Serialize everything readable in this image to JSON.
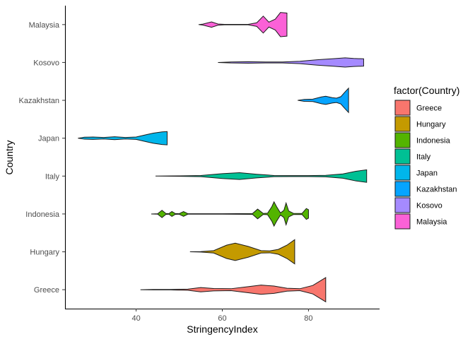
{
  "chart_data": {
    "type": "violin",
    "xlabel": "StringencyIndex",
    "ylabel": "Country",
    "xlim": [
      23.5,
      96.5
    ],
    "x_ticks": [
      40,
      60,
      80
    ],
    "grid": false,
    "legend": {
      "title": "factor(Country)",
      "placement": "right"
    },
    "categories": [
      "Greece",
      "Hungary",
      "Indonesia",
      "Italy",
      "Japan",
      "Kazakhstan",
      "Kosovo",
      "Malaysia"
    ],
    "series": [
      {
        "name": "Greece",
        "color": "#F8766D",
        "profile": [
          [
            41,
            0
          ],
          [
            44,
            0.02
          ],
          [
            48,
            0.02
          ],
          [
            52,
            0.05
          ],
          [
            55,
            0.18
          ],
          [
            58,
            0.1
          ],
          [
            62,
            0.08
          ],
          [
            66,
            0.25
          ],
          [
            69,
            0.38
          ],
          [
            72,
            0.3
          ],
          [
            75,
            0.12
          ],
          [
            78,
            0.08
          ],
          [
            81,
            0.35
          ],
          [
            84,
            1.0
          ]
        ]
      },
      {
        "name": "Hungary",
        "color": "#C49A00",
        "profile": [
          [
            52.5,
            0
          ],
          [
            55,
            0.02
          ],
          [
            58,
            0.1
          ],
          [
            61,
            0.55
          ],
          [
            63,
            0.72
          ],
          [
            66,
            0.45
          ],
          [
            69,
            0.1
          ],
          [
            71,
            0.08
          ],
          [
            73,
            0.2
          ],
          [
            75,
            0.55
          ],
          [
            76.8,
            1.0
          ]
        ]
      },
      {
        "name": "Indonesia",
        "color": "#53B400",
        "profile": [
          [
            43.5,
            0
          ],
          [
            45,
            0.02
          ],
          [
            46,
            0.3
          ],
          [
            46.9,
            0.04
          ],
          [
            47.6,
            0.02
          ],
          [
            48.3,
            0.2
          ],
          [
            49.1,
            0.03
          ],
          [
            50,
            0.02
          ],
          [
            51,
            0.2
          ],
          [
            52,
            0.02
          ],
          [
            60,
            0.02
          ],
          [
            67,
            0.03
          ],
          [
            68.2,
            0.4
          ],
          [
            69.5,
            0.04
          ],
          [
            70.5,
            0.06
          ],
          [
            71.5,
            0.6
          ],
          [
            72,
            1.0
          ],
          [
            72.6,
            0.6
          ],
          [
            73.5,
            0.08
          ],
          [
            74.3,
            0.3
          ],
          [
            74.8,
            0.9
          ],
          [
            75.4,
            0.25
          ],
          [
            76.5,
            0.05
          ],
          [
            78.5,
            0.04
          ],
          [
            79.5,
            0.45
          ],
          [
            80,
            0.35
          ]
        ]
      },
      {
        "name": "Italy",
        "color": "#00C094",
        "profile": [
          [
            44.5,
            0
          ],
          [
            50,
            0.02
          ],
          [
            55,
            0.05
          ],
          [
            60,
            0.2
          ],
          [
            64,
            0.28
          ],
          [
            68,
            0.15
          ],
          [
            72,
            0.05
          ],
          [
            76,
            0.04
          ],
          [
            80,
            0.04
          ],
          [
            84,
            0.06
          ],
          [
            88,
            0.18
          ],
          [
            91,
            0.4
          ],
          [
            93.5,
            0.52
          ]
        ]
      },
      {
        "name": "Japan",
        "color": "#00B6EB",
        "profile": [
          [
            26.5,
            0
          ],
          [
            28,
            0.08
          ],
          [
            30,
            0.1
          ],
          [
            32.5,
            0.06
          ],
          [
            35,
            0.12
          ],
          [
            37.5,
            0.06
          ],
          [
            40,
            0.1
          ],
          [
            42.5,
            0.3
          ],
          [
            44,
            0.42
          ],
          [
            46,
            0.52
          ],
          [
            47.2,
            0.55
          ]
        ]
      },
      {
        "name": "Kazakhstan",
        "color": "#06A4FF",
        "profile": [
          [
            77.5,
            0
          ],
          [
            79,
            0.08
          ],
          [
            81,
            0.1
          ],
          [
            83,
            0.28
          ],
          [
            84,
            0.34
          ],
          [
            85.5,
            0.22
          ],
          [
            86.5,
            0.18
          ],
          [
            87.5,
            0.3
          ],
          [
            88.5,
            0.7
          ],
          [
            89.3,
            1.0
          ]
        ]
      },
      {
        "name": "Kosovo",
        "color": "#A58AFF",
        "profile": [
          [
            59,
            0
          ],
          [
            62,
            0.04
          ],
          [
            66,
            0.06
          ],
          [
            70,
            0.04
          ],
          [
            74,
            0.04
          ],
          [
            78,
            0.1
          ],
          [
            82,
            0.22
          ],
          [
            86,
            0.32
          ],
          [
            88.5,
            0.38
          ],
          [
            90.5,
            0.33
          ],
          [
            92.8,
            0.3
          ]
        ]
      },
      {
        "name": "Malaysia",
        "color": "#FB61D7",
        "profile": [
          [
            54.5,
            0
          ],
          [
            55.5,
            0.04
          ],
          [
            57.5,
            0.22
          ],
          [
            59,
            0.05
          ],
          [
            60.5,
            0.02
          ],
          [
            66,
            0.02
          ],
          [
            68,
            0.15
          ],
          [
            69.5,
            0.7
          ],
          [
            70.8,
            0.2
          ],
          [
            72.3,
            0.45
          ],
          [
            73.5,
            1.0
          ],
          [
            75,
            0.95
          ]
        ]
      }
    ]
  }
}
